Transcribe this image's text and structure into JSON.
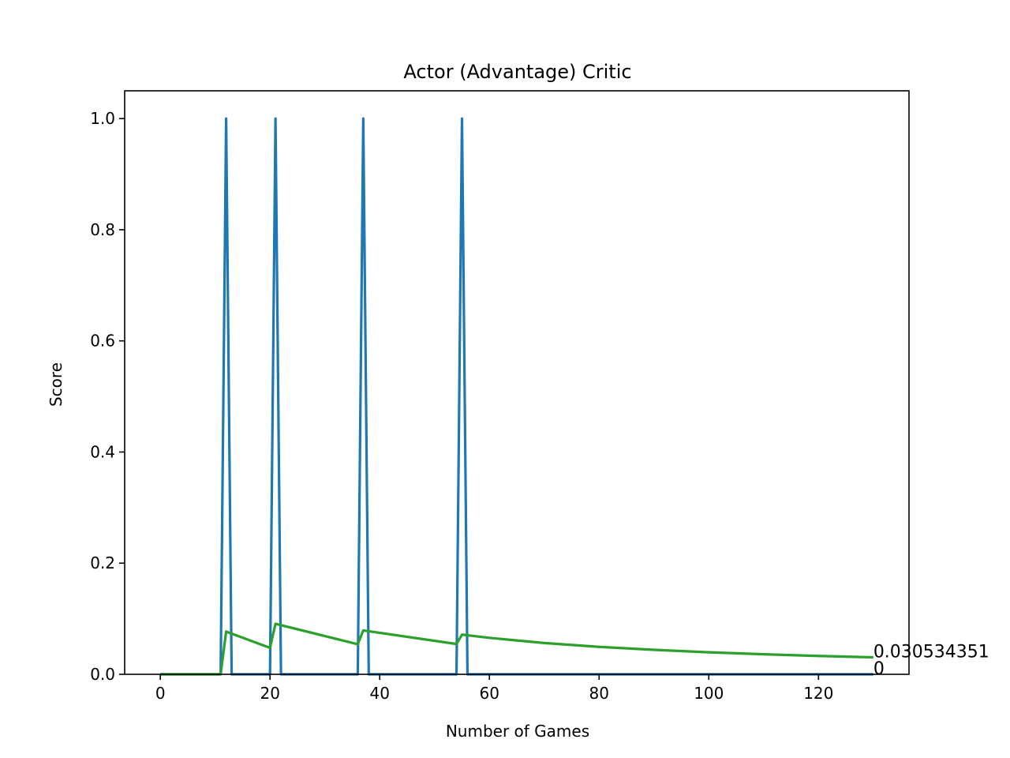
{
  "chart_data": {
    "type": "line",
    "title": "Actor (Advantage) Critic",
    "xlabel": "Number of Games",
    "ylabel": "Score",
    "xlim": [
      -6.5,
      136.5
    ],
    "ylim": [
      0,
      1.05
    ],
    "xticks": [
      0,
      20,
      40,
      60,
      80,
      100,
      120
    ],
    "yticks": [
      0.0,
      0.2,
      0.4,
      0.6,
      0.8,
      1.0
    ],
    "x_tick_labels": [
      "0",
      "20",
      "40",
      "60",
      "80",
      "100",
      "120"
    ],
    "y_tick_labels": [
      "0.0",
      "0.2",
      "0.4",
      "0.6",
      "0.8",
      "1.0"
    ],
    "grid": false,
    "legend": "none",
    "series": [
      {
        "color": "#1f77b4",
        "points": [
          [
            0,
            0
          ],
          [
            11,
            0
          ],
          [
            12,
            1
          ],
          [
            13,
            0
          ],
          [
            20,
            0
          ],
          [
            21,
            1
          ],
          [
            22,
            0
          ],
          [
            36,
            0
          ],
          [
            37,
            1
          ],
          [
            38,
            0
          ],
          [
            54,
            0
          ],
          [
            55,
            1
          ],
          [
            56,
            0
          ],
          [
            130,
            0
          ]
        ]
      },
      {
        "color": "#2ca02c",
        "points": [
          [
            0,
            0
          ],
          [
            11,
            0
          ],
          [
            12,
            0.0769
          ],
          [
            20,
            0.0476
          ],
          [
            21,
            0.0909
          ],
          [
            36,
            0.0541
          ],
          [
            37,
            0.0789
          ],
          [
            54,
            0.0545
          ],
          [
            55,
            0.0714
          ],
          [
            60,
            0.0656
          ],
          [
            70,
            0.0563
          ],
          [
            80,
            0.0494
          ],
          [
            90,
            0.044
          ],
          [
            100,
            0.0396
          ],
          [
            110,
            0.036
          ],
          [
            120,
            0.033
          ],
          [
            130,
            0.0305
          ]
        ]
      }
    ],
    "annotations": [
      {
        "text": "0.030534351",
        "x": 130,
        "y": 0.0305
      },
      {
        "text": "0",
        "x": 130,
        "y": 0
      }
    ]
  }
}
